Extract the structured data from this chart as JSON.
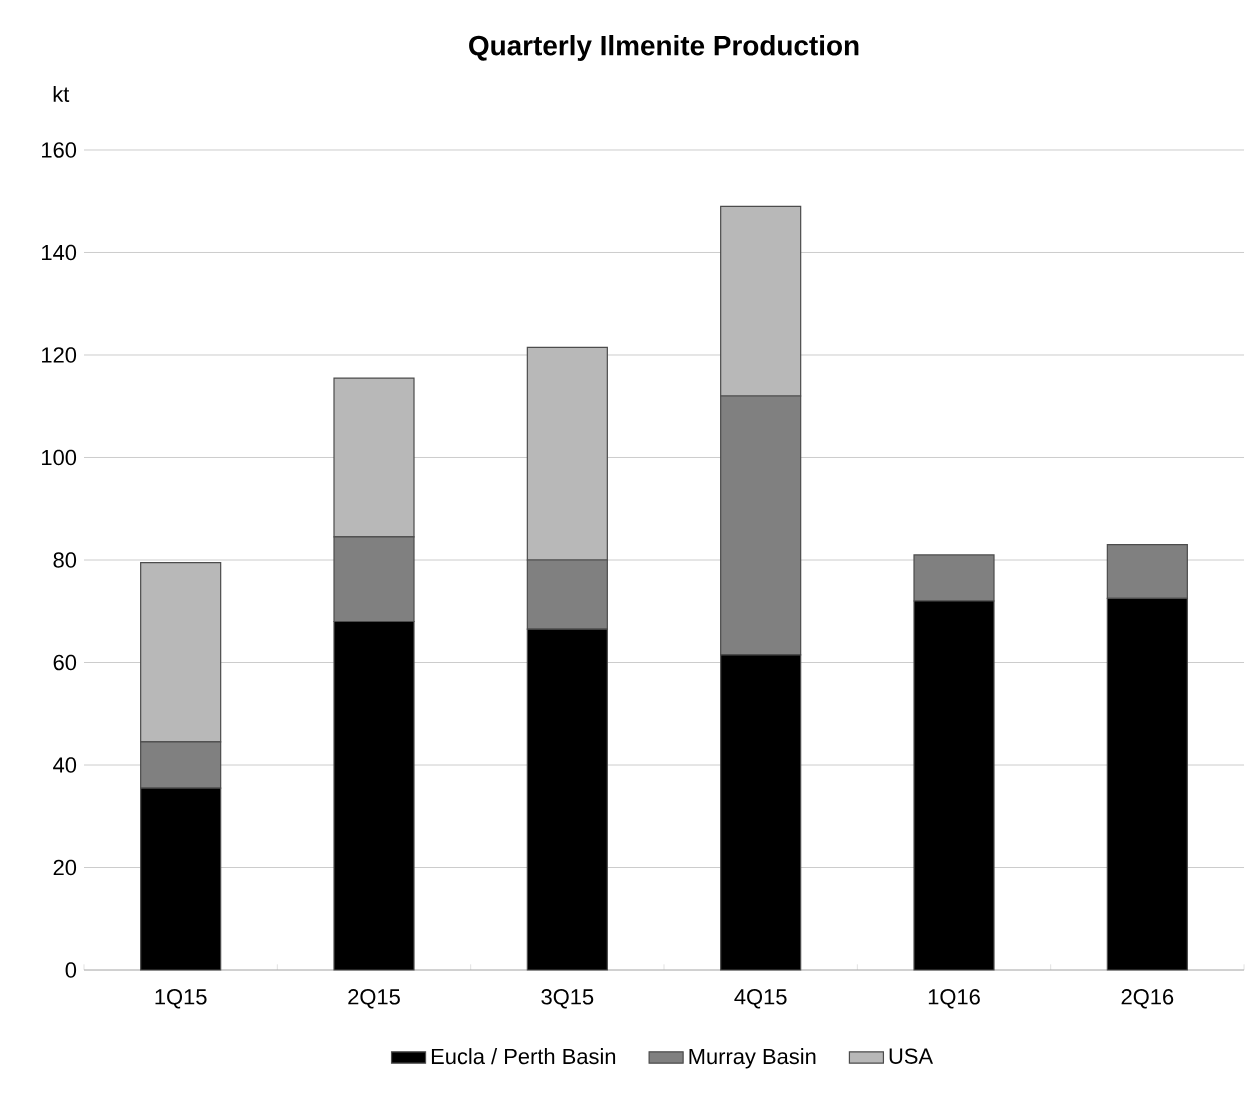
{
  "chart_data": {
    "type": "bar",
    "title": "Quarterly Ilmenite Production",
    "ylabel": "kt",
    "categories": [
      "1Q15",
      "2Q15",
      "3Q15",
      "4Q15",
      "1Q16",
      "2Q16"
    ],
    "stacked": true,
    "series": [
      {
        "name": "Eucla / Perth Basin",
        "color": "#000000",
        "values": [
          35.5,
          68,
          66.5,
          61.5,
          72,
          72.5
        ]
      },
      {
        "name": "Murray Basin",
        "color": "#808080",
        "values": [
          9,
          16.5,
          13.5,
          50.5,
          9,
          10.5
        ]
      },
      {
        "name": "USA",
        "color": "#b8b8b8",
        "values": [
          35,
          31,
          41.5,
          37,
          0,
          0
        ]
      }
    ],
    "ylim": [
      0,
      160
    ],
    "yticks": [
      0,
      20,
      40,
      60,
      80,
      100,
      120,
      140,
      160
    ],
    "grid": "y",
    "legend": "bottom"
  }
}
